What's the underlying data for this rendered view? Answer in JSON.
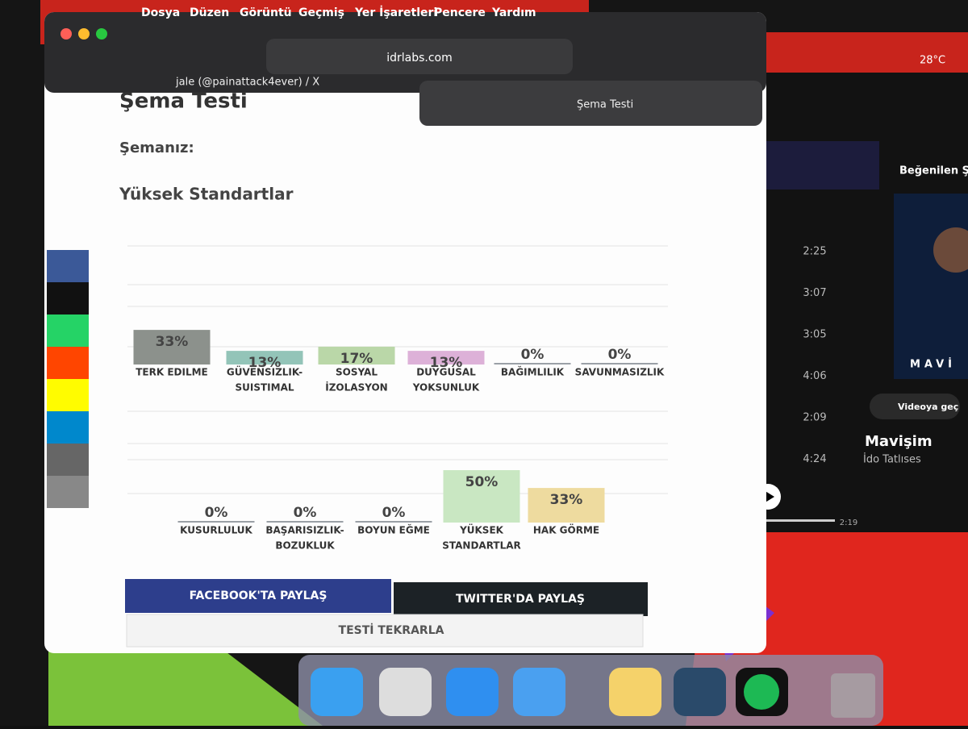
{
  "menu_bar": {
    "items": [
      "Dosya",
      "Düzen",
      "Görüntü",
      "Geçmiş",
      "Yer İşaretleri",
      "Pencere",
      "Yardım"
    ],
    "weather": "28°C"
  },
  "browser": {
    "url": "idrlabs.com",
    "tabs": [
      "jale (@painattack4ever) / X",
      "Şema Testi"
    ]
  },
  "page": {
    "title": "Şema Testi",
    "schema_label": "Şemanız:",
    "result": "Yüksek Standartlar",
    "rows": [
      [
        {
          "label_lines": [
            "TERK EDILME"
          ],
          "value": 33,
          "value_label": "33%",
          "color": "#8c918c"
        },
        {
          "label_lines": [
            "GÜVENSIZLIK-",
            "SUISTIMAL"
          ],
          "value": 13,
          "value_label": "13%",
          "color": "#93c4b8"
        },
        {
          "label_lines": [
            "SOSYAL",
            "İZOLASYON"
          ],
          "value": 17,
          "value_label": "17%",
          "color": "#bad7a8"
        },
        {
          "label_lines": [
            "DUYGUSAL",
            "YOKSUNLUK"
          ],
          "value": 13,
          "value_label": "13%",
          "color": "#ddb1d8"
        },
        {
          "label_lines": [
            "BAĞIMLILIK"
          ],
          "value": 0,
          "value_label": "0%",
          "color": "#9aa0a6"
        },
        {
          "label_lines": [
            "SAVUNMASIZLIK"
          ],
          "value": 0,
          "value_label": "0%",
          "color": "#9aa0a6"
        }
      ],
      [
        {
          "label_lines": [
            "KUSURLULUK"
          ],
          "value": 0,
          "value_label": "0%",
          "color": "#9aa0a6"
        },
        {
          "label_lines": [
            "BAŞARISIZLIK-",
            "BOZUKLUK"
          ],
          "value": 0,
          "value_label": "0%",
          "color": "#9aa0a6"
        },
        {
          "label_lines": [
            "BOYUN EĞME"
          ],
          "value": 0,
          "value_label": "0%",
          "color": "#9aa0a6"
        },
        {
          "label_lines": [
            "YÜKSEK",
            "STANDARTLAR"
          ],
          "value": 50,
          "value_label": "50%",
          "color": "#c9e7c2"
        },
        {
          "label_lines": [
            "HAK GÖRME"
          ],
          "value": 33,
          "value_label": "33%",
          "color": "#eedb9f"
        }
      ]
    ],
    "buttons": {
      "facebook": "FACEBOOK'TA PAYLAŞ",
      "twitter": "TWITTER'DA PAYLAŞ",
      "retake": "TESTİ TEKRARLA"
    }
  },
  "music": {
    "header": "Beğenilen Şa",
    "durations": [
      "2:25",
      "3:07",
      "3:05",
      "4:06",
      "2:09",
      "4:24"
    ],
    "video_button": "Videoya geç",
    "album": "MAVİ",
    "song": "Mavişim",
    "artist": "İdo Tatlıses",
    "elapsed": "2:19"
  }
}
